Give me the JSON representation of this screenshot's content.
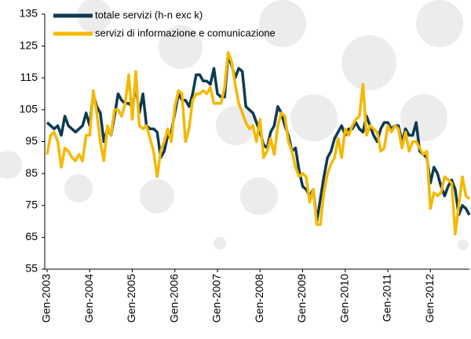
{
  "chart_data": {
    "type": "line",
    "categories": [
      "Gen-2003",
      null,
      null,
      null,
      null,
      null,
      null,
      null,
      null,
      null,
      null,
      null,
      "Gen-2004",
      null,
      null,
      null,
      null,
      null,
      null,
      null,
      null,
      null,
      null,
      null,
      "Gen-2005",
      null,
      null,
      null,
      null,
      null,
      null,
      null,
      null,
      null,
      null,
      null,
      "Gen-2006",
      null,
      null,
      null,
      null,
      null,
      null,
      null,
      null,
      null,
      null,
      null,
      "Gen-2007",
      null,
      null,
      null,
      null,
      null,
      null,
      null,
      null,
      null,
      null,
      null,
      "Gen-2008",
      null,
      null,
      null,
      null,
      null,
      null,
      null,
      null,
      null,
      null,
      null,
      "Gen-2009",
      null,
      null,
      null,
      null,
      null,
      null,
      null,
      null,
      null,
      null,
      null,
      "Gen-2010",
      null,
      null,
      null,
      null,
      null,
      null,
      null,
      null,
      null,
      null,
      null,
      "Gen-2011",
      null,
      null,
      null,
      null,
      null,
      null,
      null,
      null,
      null,
      null,
      null,
      "Gen-2012",
      null,
      null,
      null,
      null,
      null,
      null,
      null,
      null,
      null,
      null,
      null
    ],
    "series": [
      {
        "name": "totale servizi (h-n exc k)",
        "color": "#0d3a52",
        "values": [
          101,
          100,
          99,
          100,
          97,
          103,
          100,
          99,
          98,
          99,
          100,
          104,
          100,
          110,
          106,
          104,
          95,
          99,
          97,
          103,
          110,
          108,
          107,
          107,
          106,
          112,
          104,
          110,
          100,
          99,
          99,
          98,
          90,
          92,
          97,
          98,
          104,
          110,
          108,
          108,
          106,
          110,
          116,
          116,
          114,
          114,
          113,
          118,
          110,
          109,
          109,
          122,
          119,
          115,
          118,
          117,
          106,
          105,
          104,
          101,
          98,
          94,
          93,
          98,
          100,
          106,
          104,
          100,
          97,
          92,
          93,
          86,
          81,
          80,
          78,
          80,
          70,
          77,
          84,
          90,
          92,
          96,
          98,
          100,
          97,
          99,
          99,
          101,
          99,
          98,
          103,
          100,
          97,
          95,
          99,
          101,
          101,
          99,
          100,
          100,
          95,
          99,
          97,
          97,
          101,
          92,
          91,
          90,
          82,
          87,
          85,
          81,
          78,
          81,
          83,
          80,
          72,
          75,
          74,
          72
        ]
      },
      {
        "name": "servizi di informazione e comunicazione",
        "color": "#f5b800",
        "values": [
          91,
          97,
          98,
          95,
          87,
          93,
          92,
          90,
          89,
          91,
          89,
          97,
          97,
          111,
          104,
          95,
          89,
          100,
          97,
          105,
          105,
          103,
          107,
          116,
          102,
          117,
          100,
          99,
          100,
          96,
          92,
          84,
          92,
          95,
          99,
          95,
          106,
          111,
          110,
          95,
          99,
          108,
          110,
          110,
          111,
          110,
          112,
          107,
          107,
          107,
          112,
          123,
          120,
          113,
          107,
          104,
          101,
          99,
          100,
          95,
          102,
          90,
          92,
          96,
          91,
          100,
          104,
          103,
          95,
          92,
          87,
          84,
          85,
          84,
          76,
          80,
          69,
          69,
          79,
          85,
          88,
          90,
          96,
          90,
          99,
          97,
          100,
          102,
          103,
          113,
          97,
          100,
          99,
          98,
          92,
          93,
          100,
          98,
          100,
          99,
          93,
          98,
          92,
          95,
          95,
          93,
          91,
          92,
          74,
          79,
          78,
          79,
          84,
          83,
          82,
          66,
          75,
          84,
          78,
          77
        ]
      }
    ],
    "ylim": [
      55,
      135
    ],
    "yticks": [
      55,
      65,
      75,
      85,
      95,
      105,
      115,
      125,
      135
    ],
    "legend": "top-left"
  }
}
